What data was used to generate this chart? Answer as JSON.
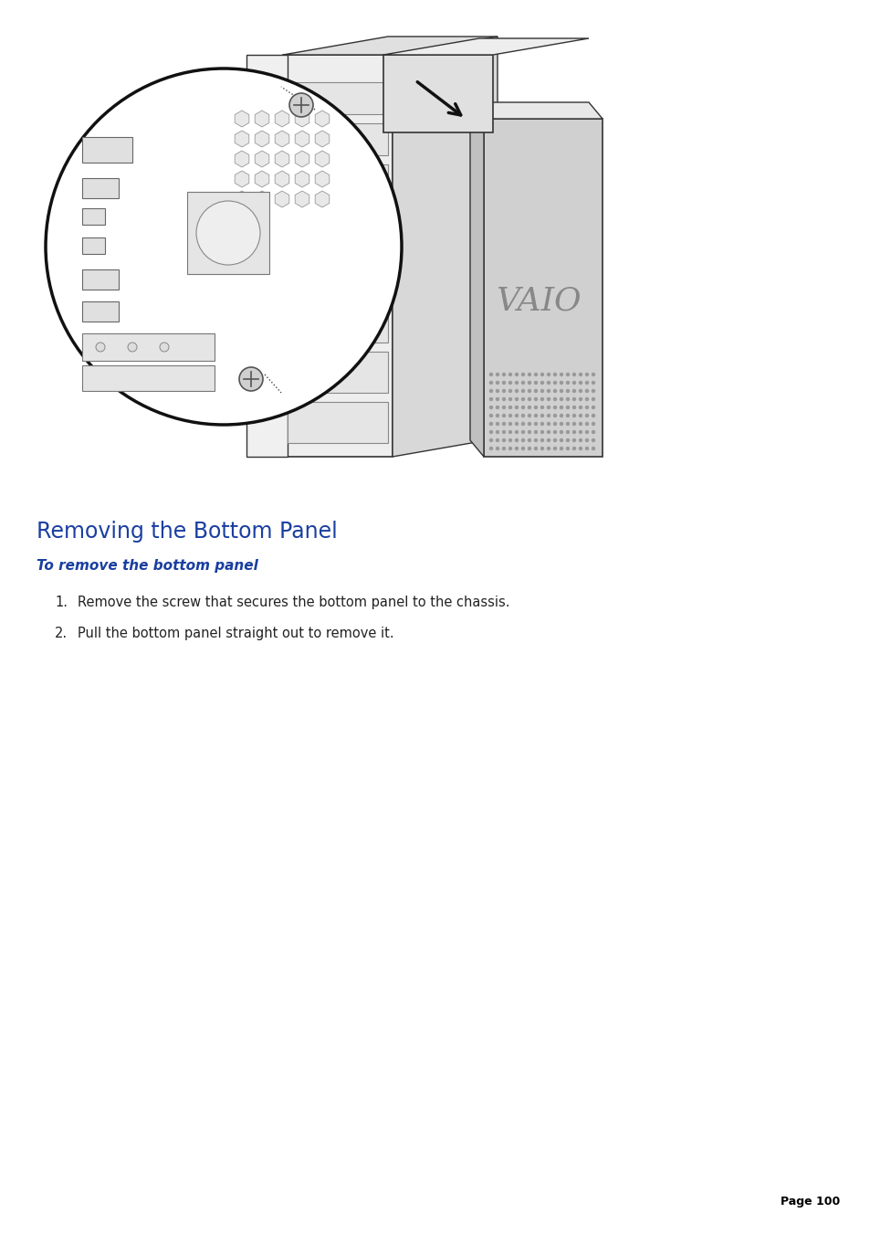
{
  "page_background": "#ffffff",
  "title": "Removing the Bottom Panel",
  "title_color": "#1a3fa0",
  "title_fontsize": 17,
  "subtitle": "To remove the bottom panel",
  "subtitle_color": "#1a3fa0",
  "subtitle_fontsize": 11,
  "steps": [
    "Remove the screw that secures the bottom panel to the chassis.",
    "Pull the bottom panel straight out to remove it."
  ],
  "step_fontsize": 10.5,
  "step_color": "#222222",
  "page_number": "Page 100",
  "page_num_fontsize": 9,
  "page_num_color": "#000000",
  "line_color": "#333333",
  "fill_light": "#f2f2f2",
  "fill_medium": "#d8d8d8",
  "fill_dark": "#b0b0b0"
}
